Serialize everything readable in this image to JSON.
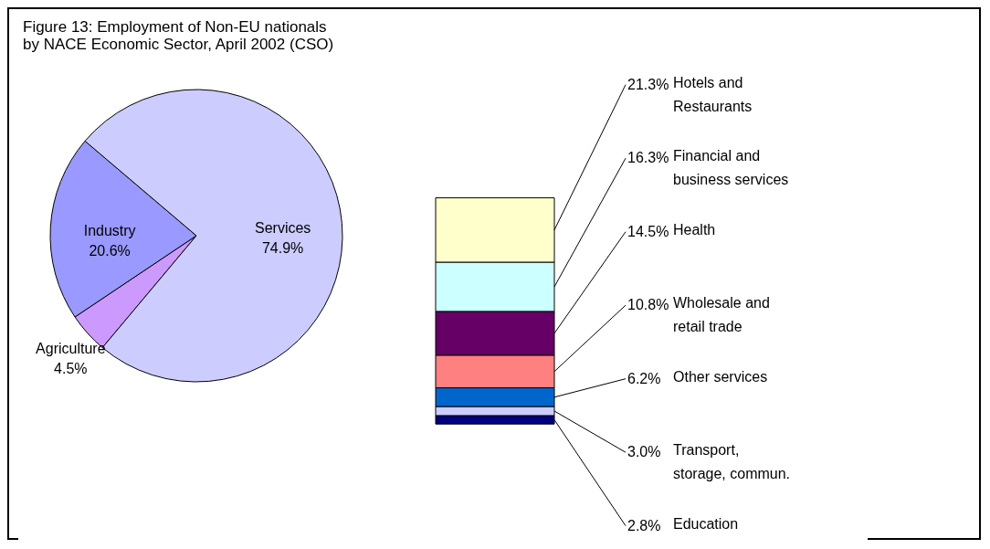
{
  "chart_data": [
    {
      "type": "pie",
      "title": [
        "Figure 13: Employment of Non-EU nationals",
        "by NACE Economic Sector, April 2002 (CSO)"
      ],
      "categories": [
        "Agriculture",
        "Industry",
        "Services"
      ],
      "values": [
        4.5,
        20.6,
        74.9
      ],
      "colors": [
        "#cc99ff",
        "#9999ff",
        "#ccccff"
      ],
      "value_labels": [
        "4.5%",
        "20.6%",
        "74.9%"
      ],
      "legend": false
    },
    {
      "type": "bar",
      "stacked": true,
      "categories": [
        null
      ],
      "legend": false,
      "series": [
        {
          "name": "Education",
          "color": "#000080",
          "values": [
            2.8
          ],
          "value_labels": [
            "2.8%"
          ]
        },
        {
          "name": "Transport, storage, commun.",
          "color": "#ccccff",
          "values": [
            3.0
          ],
          "value_labels": [
            "3.0%"
          ]
        },
        {
          "name": "Other services",
          "color": "#0066cc",
          "values": [
            6.2
          ],
          "value_labels": [
            "6.2%"
          ]
        },
        {
          "name": "Wholesale and retail trade",
          "color": "#ff8080",
          "values": [
            10.8
          ],
          "value_labels": [
            "10.8%"
          ]
        },
        {
          "name": "Health",
          "color": "#660066",
          "values": [
            14.5
          ],
          "value_labels": [
            "14.5%"
          ]
        },
        {
          "name": "Financial and business services",
          "color": "#ccffff",
          "values": [
            16.3
          ],
          "value_labels": [
            "16.3%"
          ]
        },
        {
          "name": "Hotels and Restaurants",
          "color": "#ffffcc",
          "values": [
            21.3
          ],
          "value_labels": [
            "21.3%"
          ]
        }
      ]
    }
  ]
}
